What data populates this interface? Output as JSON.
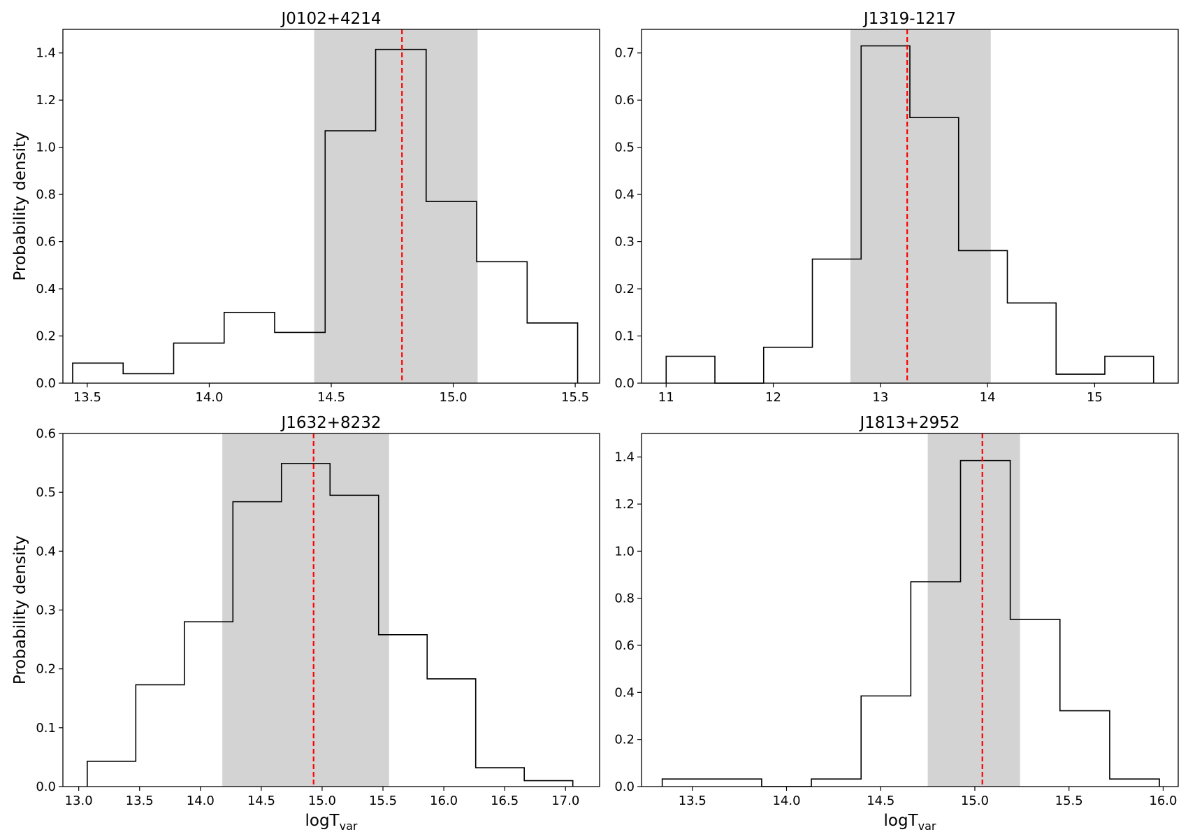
{
  "colors": {
    "band": "#d3d3d3",
    "median_line": "#ff0000",
    "histogram": "#000000",
    "axes": "#000000"
  },
  "chart_data": [
    {
      "type": "histogram",
      "title": "J0102+4214",
      "xlabel": "",
      "xlabel_sub": "",
      "ylabel": "Probability density",
      "xlim": [
        13.4,
        15.6
      ],
      "ylim": [
        0.0,
        1.5
      ],
      "xticks": [
        13.5,
        14.0,
        14.5,
        15.0,
        15.5
      ],
      "xtick_labels": [
        "13.5",
        "14.0",
        "14.5",
        "15.0",
        "15.5"
      ],
      "yticks": [
        0.0,
        0.2,
        0.4,
        0.6,
        0.8,
        1.0,
        1.2,
        1.4
      ],
      "ytick_labels": [
        "0.0",
        "0.2",
        "0.4",
        "0.6",
        "0.8",
        "1.0",
        "1.2",
        "1.4"
      ],
      "bin_edges": [
        13.44,
        13.647,
        13.854,
        14.061,
        14.268,
        14.475,
        14.682,
        14.889,
        15.096,
        15.303,
        15.51
      ],
      "densities": [
        0.085,
        0.04,
        0.17,
        0.3,
        0.215,
        1.07,
        1.415,
        0.77,
        0.515,
        0.255
      ],
      "band": [
        14.43,
        15.1
      ],
      "median": 14.79
    },
    {
      "type": "histogram",
      "title": "J1319-1217",
      "xlabel": "",
      "xlabel_sub": "",
      "ylabel": "",
      "xlim": [
        10.77,
        15.78
      ],
      "ylim": [
        0.0,
        0.75
      ],
      "xticks": [
        11,
        12,
        13,
        14,
        15
      ],
      "xtick_labels": [
        "11",
        "12",
        "13",
        "14",
        "15"
      ],
      "yticks": [
        0.0,
        0.1,
        0.2,
        0.3,
        0.4,
        0.5,
        0.6,
        0.7
      ],
      "ytick_labels": [
        "0.0",
        "0.1",
        "0.2",
        "0.3",
        "0.4",
        "0.5",
        "0.6",
        "0.7"
      ],
      "bin_edges": [
        11.0,
        11.455,
        11.91,
        12.365,
        12.82,
        13.275,
        13.73,
        14.185,
        14.64,
        15.095,
        15.55
      ],
      "densities": [
        0.057,
        0.0,
        0.076,
        0.263,
        0.715,
        0.563,
        0.281,
        0.17,
        0.019,
        0.057
      ],
      "band": [
        12.72,
        14.03
      ],
      "median": 13.25
    },
    {
      "type": "histogram",
      "title": "J1632+8232",
      "xlabel": "logT",
      "xlabel_sub": "var",
      "ylabel": "Probability density",
      "xlim": [
        12.87,
        17.28
      ],
      "ylim": [
        0.0,
        0.6
      ],
      "xticks": [
        13.0,
        13.5,
        14.0,
        14.5,
        15.0,
        15.5,
        16.0,
        16.5,
        17.0
      ],
      "xtick_labels": [
        "13.0",
        "13.5",
        "14.0",
        "14.5",
        "15.0",
        "15.5",
        "16.0",
        "16.5",
        "17.0"
      ],
      "yticks": [
        0.0,
        0.1,
        0.2,
        0.3,
        0.4,
        0.5,
        0.6
      ],
      "ytick_labels": [
        "0.0",
        "0.1",
        "0.2",
        "0.3",
        "0.4",
        "0.5",
        "0.6"
      ],
      "bin_edges": [
        13.07,
        13.469,
        13.868,
        14.267,
        14.666,
        15.065,
        15.464,
        15.863,
        16.262,
        16.661,
        17.06
      ],
      "densities": [
        0.043,
        0.173,
        0.28,
        0.484,
        0.549,
        0.495,
        0.258,
        0.183,
        0.032,
        0.01
      ],
      "band": [
        14.18,
        15.55
      ],
      "median": 14.93
    },
    {
      "type": "histogram",
      "title": "J1813+2952",
      "xlabel": "logT",
      "xlabel_sub": "var",
      "ylabel": "",
      "xlim": [
        13.23,
        16.08
      ],
      "ylim": [
        0.0,
        1.5
      ],
      "xticks": [
        13.5,
        14.0,
        14.5,
        15.0,
        15.5,
        16.0
      ],
      "xtick_labels": [
        "13.5",
        "14.0",
        "14.5",
        "15.0",
        "15.5",
        "16.0"
      ],
      "yticks": [
        0.0,
        0.2,
        0.4,
        0.6,
        0.8,
        1.0,
        1.2,
        1.4
      ],
      "ytick_labels": [
        "0.0",
        "0.2",
        "0.4",
        "0.6",
        "0.8",
        "1.0",
        "1.2",
        "1.4"
      ],
      "bin_edges": [
        13.34,
        13.604,
        13.868,
        14.132,
        14.396,
        14.66,
        14.924,
        15.188,
        15.452,
        15.716,
        15.98
      ],
      "densities": [
        0.032,
        0.032,
        0.0,
        0.032,
        0.385,
        0.87,
        1.385,
        0.71,
        0.322,
        0.032
      ],
      "band": [
        14.75,
        15.24
      ],
      "median": 15.04
    }
  ]
}
